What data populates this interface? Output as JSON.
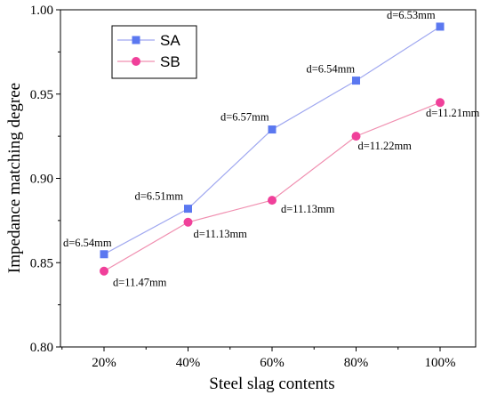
{
  "chart_data": {
    "type": "line",
    "title": "",
    "xlabel": "Steel slag contents",
    "ylabel": "Impedance matching degree",
    "categories": [
      "20%",
      "40%",
      "60%",
      "80%",
      "100%"
    ],
    "ylim": [
      0.8,
      1.0
    ],
    "yticks": [
      0.8,
      0.85,
      0.9,
      0.95,
      1.0
    ],
    "ytick_labels": [
      "0.80",
      "0.85",
      "0.90",
      "0.95",
      "1.00"
    ],
    "grid": false,
    "legend_position": "top-left",
    "series": [
      {
        "name": "SA",
        "marker": "square",
        "color": "#5b78f0",
        "line_color": "#a0a8f0",
        "values": [
          0.855,
          0.882,
          0.929,
          0.958,
          0.99
        ],
        "labels": [
          "d=6.54mm",
          "d=6.51mm",
          "d=6.57mm",
          "d=6.54mm",
          "d=6.53mm"
        ]
      },
      {
        "name": "SB",
        "marker": "circle",
        "color": "#f0409a",
        "line_color": "#f08fb0",
        "values": [
          0.845,
          0.874,
          0.887,
          0.925,
          0.945
        ],
        "labels": [
          "d=11.47mm",
          "d=11.13mm",
          "d=11.13mm",
          "d=11.22mm",
          "d=11.21mm"
        ]
      }
    ]
  }
}
